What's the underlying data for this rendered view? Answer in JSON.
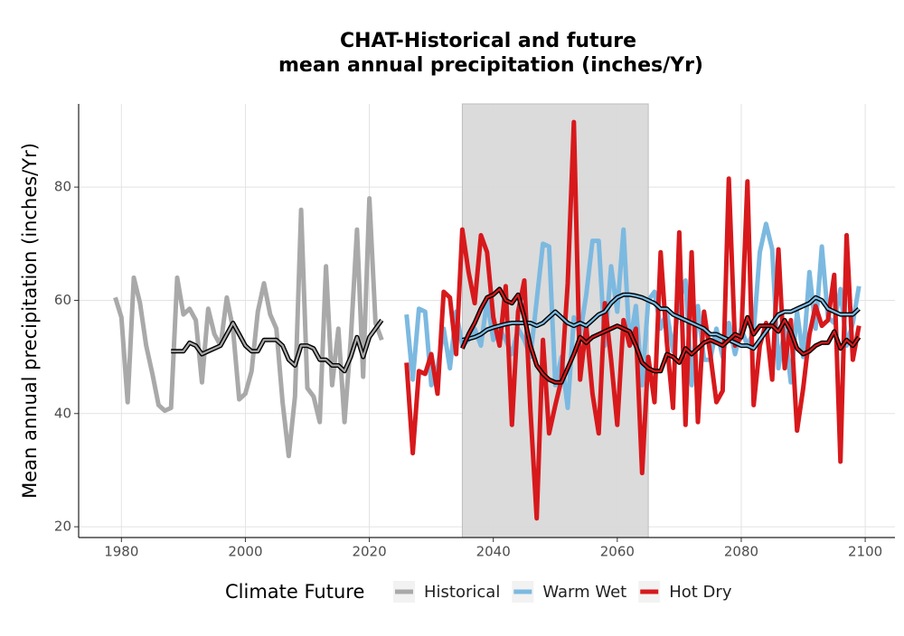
{
  "chart_data": {
    "type": "line",
    "title": [
      "CHAT-Historical and future",
      "mean annual precipitation (inches/Yr)"
    ],
    "y_label": "Mean annual precipitation (inches/Yr)",
    "legend_title": "Climate Future",
    "xlim": [
      1973.1,
      2104.8
    ],
    "ylim": [
      18.1,
      94.7
    ],
    "xticks": [
      1980,
      2000,
      2020,
      2040,
      2060,
      2080,
      2100
    ],
    "yticks": [
      20,
      40,
      60,
      80
    ],
    "grid": true,
    "shaded_x": [
      2035,
      2065
    ],
    "series": [
      {
        "name": "Historical",
        "color": "#a9a9a9",
        "x": [
          1979,
          1980,
          1981,
          1982,
          1983,
          1984,
          1985,
          1986,
          1987,
          1988,
          1989,
          1990,
          1991,
          1992,
          1993,
          1994,
          1995,
          1996,
          1997,
          1998,
          1999,
          2000,
          2001,
          2002,
          2003,
          2004,
          2005,
          2006,
          2007,
          2008,
          2009,
          2010,
          2011,
          2012,
          2013,
          2014,
          2015,
          2016,
          2017,
          2018,
          2019,
          2020,
          2021,
          2022
        ],
        "values": [
          60.5,
          57,
          42,
          64,
          59.5,
          52,
          47,
          41.5,
          40.5,
          41,
          64,
          57.5,
          58.5,
          56.5,
          45.5,
          58.5,
          54,
          52,
          60.5,
          55,
          42.5,
          43.5,
          47.5,
          58,
          63,
          57.5,
          55,
          42,
          32.5,
          43,
          76,
          44.5,
          43,
          38.5,
          66,
          45,
          55,
          38.5,
          53,
          72.5,
          46.5,
          78,
          56,
          53
        ],
        "trend": [
          null,
          null,
          null,
          null,
          null,
          null,
          null,
          null,
          null,
          51,
          51,
          51,
          52.5,
          52,
          50.5,
          51,
          51.5,
          52,
          54,
          56,
          54,
          52,
          51,
          51,
          53,
          53,
          53,
          52,
          49.5,
          48.5,
          52,
          52,
          51.5,
          49.5,
          49.5,
          48.5,
          48.5,
          47.5,
          50,
          53.5,
          50,
          53.5,
          55,
          56.5
        ]
      },
      {
        "name": "Warm Wet",
        "color": "#7cb9e0",
        "x": [
          2026,
          2027,
          2028,
          2029,
          2030,
          2031,
          2032,
          2033,
          2034,
          2035,
          2036,
          2037,
          2038,
          2039,
          2040,
          2041,
          2042,
          2043,
          2044,
          2045,
          2046,
          2047,
          2048,
          2049,
          2050,
          2051,
          2052,
          2053,
          2054,
          2055,
          2056,
          2057,
          2058,
          2059,
          2060,
          2061,
          2062,
          2063,
          2064,
          2065,
          2066,
          2067,
          2068,
          2069,
          2070,
          2071,
          2072,
          2073,
          2074,
          2075,
          2076,
          2077,
          2078,
          2079,
          2080,
          2081,
          2082,
          2083,
          2084,
          2085,
          2086,
          2087,
          2088,
          2089,
          2090,
          2091,
          2092,
          2093,
          2094,
          2095,
          2096,
          2097,
          2098,
          2099
        ],
        "values": [
          57.5,
          46,
          58.5,
          58,
          45,
          48,
          55,
          48,
          58,
          52,
          53,
          55,
          52,
          60,
          53,
          55,
          53,
          50.5,
          55,
          53,
          50,
          60,
          70,
          69.5,
          45,
          50,
          41,
          57,
          54,
          61,
          70.5,
          70.5,
          52,
          66,
          58,
          72.5,
          52,
          59,
          45,
          60,
          61.5,
          55,
          58,
          51,
          60,
          63.5,
          45,
          59,
          49.5,
          49.5,
          55,
          50,
          56,
          50.5,
          55,
          52,
          54.5,
          68.5,
          73.5,
          69,
          48,
          55,
          45.5,
          58,
          50,
          65,
          55,
          69.5,
          57,
          56,
          62,
          52,
          56,
          62.5
        ],
        "trend": [
          null,
          null,
          null,
          null,
          null,
          null,
          null,
          null,
          null,
          53,
          53.2,
          53.5,
          54,
          54.8,
          55.2,
          55.5,
          55.8,
          56,
          56,
          56,
          56,
          55.5,
          56,
          57,
          58,
          57,
          56,
          55.5,
          56,
          55.5,
          56.5,
          57.5,
          58,
          59.5,
          60.5,
          61,
          61,
          60.8,
          60.5,
          60,
          59.5,
          58.5,
          58.5,
          57.5,
          57,
          56.5,
          56,
          55.5,
          55,
          54,
          54,
          53.5,
          53,
          52.5,
          52,
          52,
          51.5,
          53,
          54.5,
          56,
          57.5,
          58,
          58,
          58.5,
          59,
          59.5,
          60.5,
          60,
          58.5,
          58,
          57.5,
          57.5,
          57.5,
          58.5
        ]
      },
      {
        "name": "Hot Dry",
        "color": "#d7191c",
        "x": [
          2026,
          2027,
          2028,
          2029,
          2030,
          2031,
          2032,
          2033,
          2034,
          2035,
          2036,
          2037,
          2038,
          2039,
          2040,
          2041,
          2042,
          2043,
          2044,
          2045,
          2046,
          2047,
          2048,
          2049,
          2050,
          2051,
          2052,
          2053,
          2054,
          2055,
          2056,
          2057,
          2058,
          2059,
          2060,
          2061,
          2062,
          2063,
          2064,
          2065,
          2066,
          2067,
          2068,
          2069,
          2070,
          2071,
          2072,
          2073,
          2074,
          2075,
          2076,
          2077,
          2078,
          2079,
          2080,
          2081,
          2082,
          2083,
          2084,
          2085,
          2086,
          2087,
          2088,
          2089,
          2090,
          2091,
          2092,
          2093,
          2094,
          2095,
          2096,
          2097,
          2098,
          2099
        ],
        "values": [
          49,
          33,
          47.5,
          47,
          50.5,
          43.5,
          61.5,
          60.5,
          50.5,
          72.5,
          65,
          59.5,
          71.5,
          68.5,
          57,
          52,
          62.5,
          38,
          58,
          63.5,
          40.5,
          21.5,
          53,
          36.5,
          41.5,
          46,
          63,
          91.5,
          46,
          55.5,
          43.5,
          36.5,
          59.5,
          49.5,
          38,
          56.5,
          52,
          55,
          29.5,
          50,
          42,
          68.5,
          52.5,
          41,
          72,
          38,
          68.5,
          38.5,
          58,
          50.5,
          42,
          44,
          81.5,
          52,
          53.5,
          81,
          41.5,
          52,
          56,
          46,
          69,
          48,
          56.5,
          37,
          44.5,
          54,
          59,
          55.5,
          56.5,
          64.5,
          31.5,
          71.5,
          49.5,
          55.5
        ],
        "trend": [
          null,
          null,
          null,
          null,
          null,
          null,
          null,
          null,
          null,
          51.5,
          54,
          56,
          58.5,
          60.5,
          61,
          62,
          60,
          59.5,
          61,
          57,
          52,
          48.5,
          47,
          46,
          45.5,
          45.5,
          48,
          50.5,
          53.5,
          52.5,
          53.5,
          54,
          54.5,
          55,
          55.5,
          55,
          54.5,
          52,
          49,
          48,
          47.5,
          47.5,
          50.5,
          50,
          49,
          51.5,
          50.5,
          51.5,
          52.5,
          53,
          52.5,
          52,
          53,
          54,
          53.5,
          57,
          54,
          55.5,
          55.5,
          55.5,
          54.5,
          56.5,
          54.5,
          51.5,
          50.5,
          51,
          52,
          52.5,
          52.5,
          54.5,
          51.5,
          53,
          52,
          53.5
        ]
      }
    ]
  }
}
